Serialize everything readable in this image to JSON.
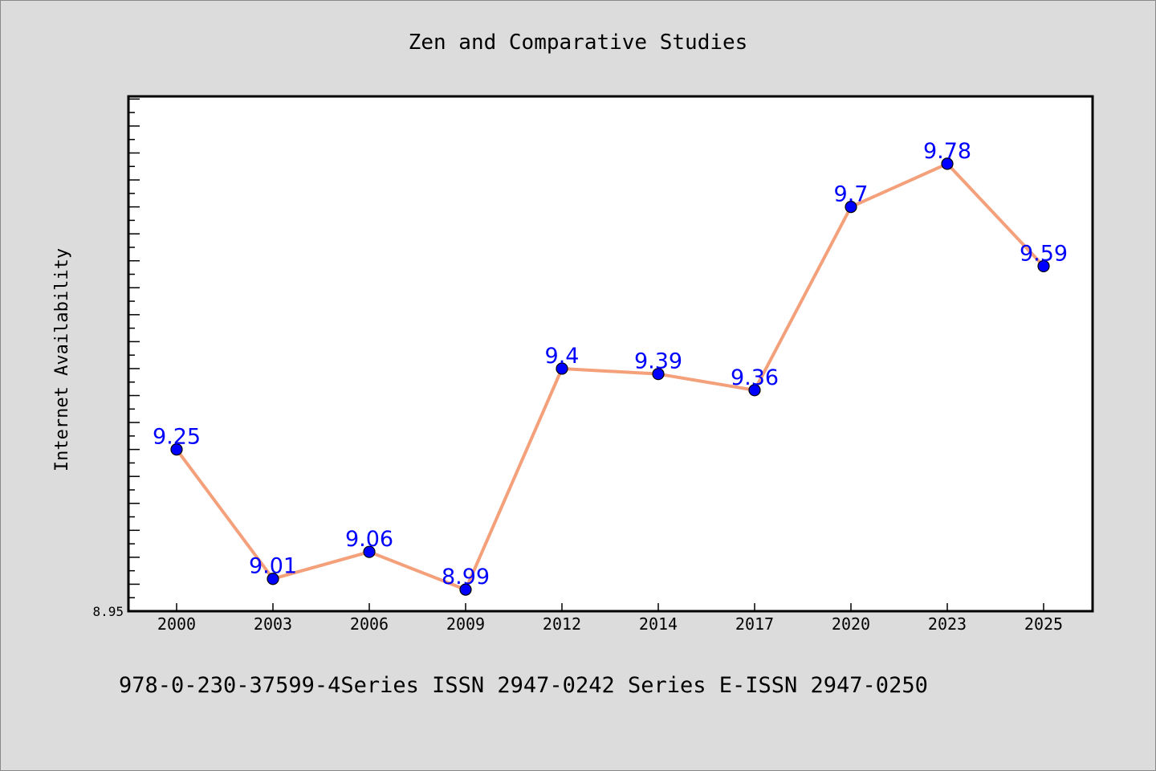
{
  "chart_data": {
    "type": "line",
    "title": "Zen and Comparative Studies",
    "xlabel": "",
    "ylabel": "Internet Availability",
    "categories": [
      "2000",
      "2003",
      "2006",
      "2009",
      "2012",
      "2014",
      "2017",
      "2020",
      "2023",
      "2025"
    ],
    "series": [
      {
        "values": [
          9.25,
          9.01,
          9.06,
          8.99,
          9.4,
          9.39,
          9.36,
          9.7,
          9.78,
          9.59
        ]
      }
    ],
    "data_labels": [
      "9.25",
      "9.01",
      "9.06",
      "8.99",
      "9.4",
      "9.39",
      "9.36",
      "9.7",
      "9.78",
      "9.59"
    ],
    "y_tick_labels": [
      "8.95"
    ],
    "ylim": [
      8.95,
      9.905
    ],
    "grid": false,
    "line_color": "#f4a07a",
    "marker_color": "#0000ff",
    "label_color": "#0000ff"
  },
  "footer_text": "978-0-230-37599-4Series ISSN 2947-0242 Series E-ISSN 2947-0250"
}
